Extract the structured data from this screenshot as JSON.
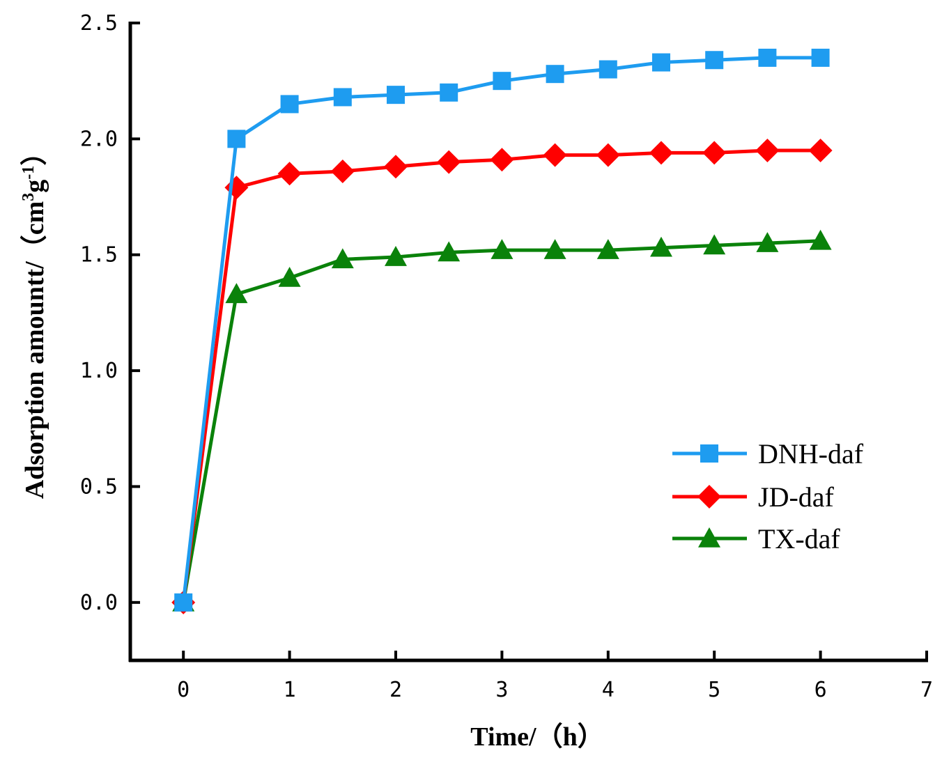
{
  "chart_data": {
    "type": "line",
    "title": "",
    "xlabel": "Time/（h）",
    "ylabel": "Adsorption amountt/（cm³g⁻¹）",
    "ylabel_parts": {
      "prefix": "Adsorption amountt/（cm",
      "sup1": "3",
      "mid": "g",
      "sup2": "-1",
      "suffix": "）"
    },
    "xlim": [
      -0.5,
      7
    ],
    "ylim": [
      -0.25,
      2.5
    ],
    "xticks": [
      0,
      1,
      2,
      3,
      4,
      5,
      6,
      7
    ],
    "xtick_labels": [
      "0",
      "1",
      "2",
      "3",
      "4",
      "5",
      "6",
      "7"
    ],
    "yticks": [
      0,
      0.5,
      1.0,
      1.5,
      2.0,
      2.5
    ],
    "ytick_labels": [
      "0.0",
      "0.5",
      "1.0",
      "1.5",
      "2.0",
      "2.5"
    ],
    "grid": false,
    "legend_position": "lower-right",
    "x": [
      0,
      0.5,
      1,
      1.5,
      2,
      2.5,
      3,
      3.5,
      4,
      4.5,
      5,
      5.5,
      6
    ],
    "series": [
      {
        "name": "DNH-daf",
        "color": "#1e9cf0",
        "marker": "square",
        "values": [
          0,
          2.0,
          2.15,
          2.18,
          2.19,
          2.2,
          2.25,
          2.28,
          2.3,
          2.33,
          2.34,
          2.35,
          2.35
        ]
      },
      {
        "name": "JD-daf",
        "color": "#ff0000",
        "marker": "diamond",
        "values": [
          0,
          1.79,
          1.85,
          1.86,
          1.88,
          1.9,
          1.91,
          1.93,
          1.93,
          1.94,
          1.94,
          1.95,
          1.95
        ]
      },
      {
        "name": "TX-daf",
        "color": "#0a820a",
        "marker": "triangle",
        "values": [
          0,
          1.33,
          1.4,
          1.48,
          1.49,
          1.51,
          1.52,
          1.52,
          1.52,
          1.53,
          1.54,
          1.55,
          1.56
        ]
      }
    ]
  }
}
